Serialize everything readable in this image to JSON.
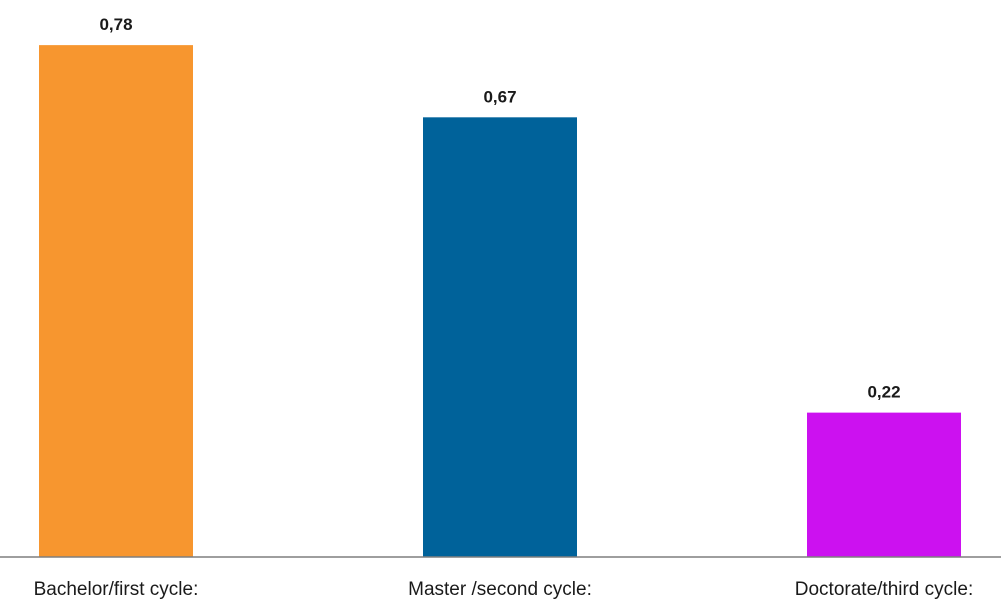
{
  "chart_data": {
    "type": "bar",
    "title": "",
    "xlabel": "",
    "ylabel": "",
    "categories": [
      "Bachelor/first cycle:",
      "Master /second cycle:",
      "Doctorate/third cycle:"
    ],
    "values": [
      0.78,
      0.67,
      0.22
    ],
    "value_labels": [
      "0,78",
      "0,67",
      "0,22"
    ],
    "colors": [
      "#f7962f",
      "#00629a",
      "#cc11f0"
    ],
    "ylim": [
      0,
      0.8
    ],
    "grid": false,
    "legend": "none"
  }
}
